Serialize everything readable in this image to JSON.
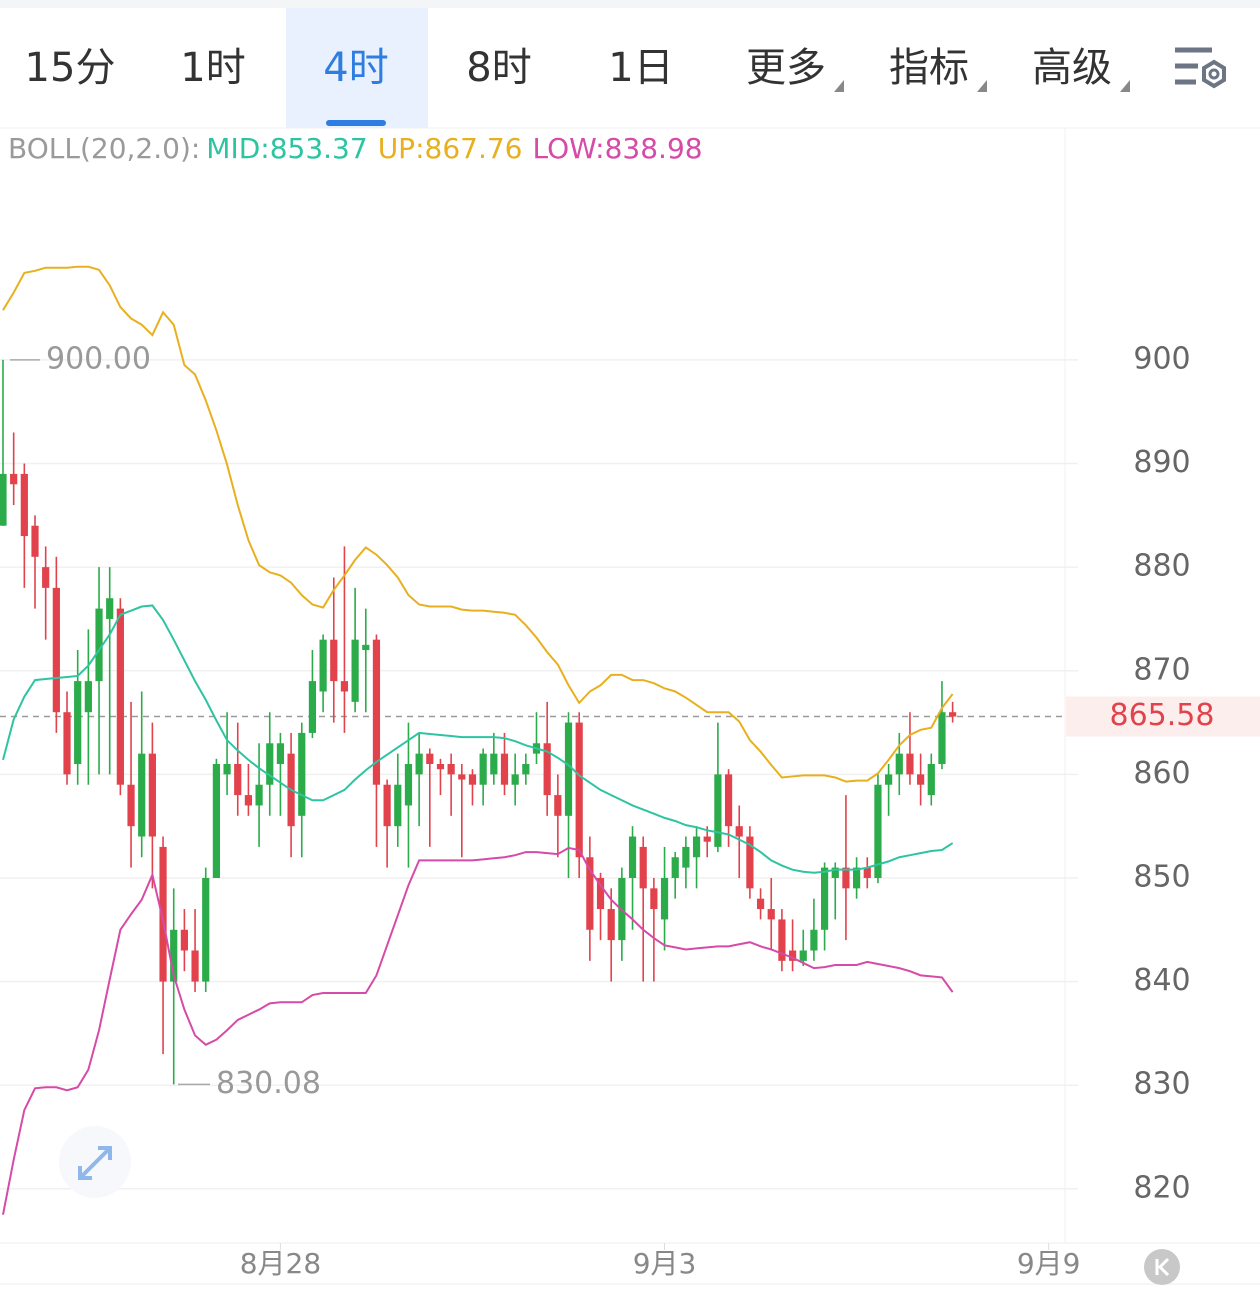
{
  "toolbar": {
    "tabs": [
      "15分",
      "1时",
      "4时",
      "8时",
      "1日",
      "更多",
      "指标",
      "高级"
    ],
    "selected": 2,
    "dropdowns": [
      5,
      6,
      7
    ]
  },
  "chart_data": {
    "type": "candlestick",
    "indicator": "BOLL(20,2.0):",
    "candles": {
      "open": [
        884,
        889,
        889,
        884,
        880,
        878,
        866,
        861,
        866,
        869,
        875,
        876,
        859,
        854,
        862,
        853,
        840,
        845,
        843,
        840,
        850,
        860,
        861,
        858,
        857,
        859,
        861,
        862,
        856,
        864,
        868,
        873,
        869,
        867,
        872,
        873,
        859,
        855,
        857,
        860,
        862,
        861,
        861,
        860,
        860,
        859,
        860,
        862,
        859,
        860,
        862,
        863,
        858,
        856,
        865,
        852,
        850,
        847,
        844,
        850,
        853,
        849,
        846,
        850,
        851,
        852,
        854,
        853,
        860,
        855,
        854,
        848,
        847,
        846,
        843,
        842,
        843,
        845,
        850,
        851,
        849,
        851,
        850,
        859,
        860,
        862,
        860,
        858,
        861,
        866
      ],
      "high": [
        900,
        893,
        890,
        885,
        882,
        881,
        868,
        872,
        874,
        880,
        880,
        877,
        867,
        868,
        865,
        854,
        849,
        847,
        847,
        851,
        861.5,
        866,
        865,
        861,
        863,
        866,
        864,
        864,
        865,
        872,
        873.5,
        879,
        882,
        878,
        876,
        873.5,
        859.5,
        862,
        865,
        864,
        862.5,
        861.5,
        862,
        861,
        860.5,
        862.5,
        864,
        864,
        862,
        862,
        866,
        867,
        860,
        866,
        866,
        854,
        850.5,
        849,
        851,
        855,
        854,
        850,
        853,
        852.5,
        854,
        855,
        855,
        865,
        860.5,
        857,
        855,
        849,
        850,
        847,
        846,
        845,
        848,
        851.5,
        851.5,
        858,
        852,
        852,
        860,
        861,
        864,
        866,
        862,
        862,
        869,
        867
      ],
      "low": [
        884,
        886,
        878,
        876,
        873,
        864,
        859,
        859,
        859,
        860,
        860,
        858,
        851,
        852,
        849,
        833,
        830.08,
        841,
        839,
        839,
        850,
        858,
        856,
        856,
        853,
        856,
        856,
        852,
        852,
        863.5,
        866,
        865,
        864,
        866,
        866,
        853,
        851,
        853,
        851,
        855,
        853,
        858,
        856,
        852,
        857,
        857,
        859,
        858,
        857,
        859,
        861,
        856,
        852,
        850,
        850,
        842,
        844,
        840,
        842,
        845,
        840,
        840,
        843,
        848,
        849,
        849,
        852,
        852.5,
        853,
        850,
        848,
        846,
        843,
        841,
        841,
        841.5,
        842,
        843,
        846,
        844,
        848,
        849,
        849.5,
        856,
        858,
        859,
        857,
        857,
        860.5,
        865
      ],
      "close": [
        889,
        888,
        883,
        881,
        878,
        866,
        860,
        869,
        869,
        876,
        877,
        859,
        855,
        862,
        854,
        840,
        845,
        843,
        840,
        850,
        861,
        861,
        858,
        857,
        859,
        863,
        863,
        855,
        864,
        869,
        873,
        869,
        868,
        873,
        872.5,
        859,
        855,
        859,
        861,
        862,
        861,
        860.5,
        860,
        859.5,
        859,
        862,
        862,
        859,
        860,
        861,
        863,
        858,
        856,
        865,
        852,
        845,
        847,
        844,
        850,
        854,
        849,
        847,
        850,
        852,
        853,
        854,
        853.5,
        860,
        855,
        854,
        849,
        847,
        846,
        842,
        842,
        843,
        845,
        851,
        851,
        849,
        851,
        850,
        859,
        860,
        862,
        860,
        859,
        861,
        866,
        865.58
      ]
    },
    "up_color": "#2bab4a",
    "down_color": "#e2424c",
    "series": [
      {
        "name": "MID:853.37",
        "color": "#2ec4a2",
        "values": [
          861.4,
          865.3,
          867.5,
          869.1,
          869.2,
          869.3,
          869.4,
          869.5,
          870.5,
          872,
          873.5,
          875.4,
          875.8,
          876.2,
          876.3,
          874.9,
          873,
          871,
          869,
          867.2,
          865.2,
          863.3,
          862.3,
          861.4,
          860.6,
          859.9,
          859.2,
          858.5,
          858,
          857.5,
          857.5,
          858,
          858.5,
          859.5,
          860.4,
          861.2,
          861.9,
          862.6,
          863.3,
          864,
          863.9,
          863.8,
          863.7,
          863.6,
          863.6,
          863.6,
          863.6,
          863.5,
          863.2,
          862.8,
          862.5,
          862.2,
          861.6,
          860.9,
          859.9,
          859.2,
          858.5,
          858,
          857.5,
          857,
          856.6,
          856.2,
          855.8,
          855.5,
          855.1,
          854.9,
          854.6,
          854.4,
          854.2,
          853.7,
          853.2,
          852.5,
          851.7,
          851.2,
          850.8,
          850.6,
          850.5,
          850.6,
          850.8,
          850.8,
          850.8,
          851,
          851.3,
          851.6,
          852,
          852.2,
          852.4,
          852.6,
          852.7,
          853.37
        ]
      },
      {
        "name": "UP:867.76",
        "color": "#e8b01e",
        "values": [
          904.8,
          906.5,
          908.4,
          908.6,
          908.9,
          908.9,
          908.9,
          909,
          909,
          908.7,
          907.2,
          905.1,
          904,
          903.4,
          902.4,
          904.6,
          903.4,
          899.5,
          898.6,
          896.1,
          893.2,
          889.9,
          886,
          882.6,
          880.2,
          879.5,
          879.2,
          878.5,
          877.3,
          876.4,
          876.1,
          877.8,
          879.2,
          880.7,
          881.9,
          881.2,
          880.2,
          879,
          877.3,
          876.4,
          876.2,
          876.2,
          876.2,
          875.9,
          875.8,
          875.8,
          875.7,
          875.6,
          875.4,
          874.4,
          873.2,
          871.8,
          870.6,
          868.6,
          866.9,
          868,
          868.6,
          869.6,
          869.6,
          869.1,
          869.1,
          868.8,
          868.3,
          868,
          867.4,
          866.7,
          866,
          866,
          866,
          865.1,
          863.3,
          862.2,
          860.9,
          859.7,
          859.8,
          859.9,
          859.9,
          859.9,
          859.7,
          859.3,
          859.4,
          859.4,
          860.1,
          861.4,
          862.8,
          863.8,
          864.3,
          864.5,
          866.4,
          867.76
        ]
      },
      {
        "name": "LOW:838.98",
        "color": "#d64aa8",
        "values": [
          817.5,
          822.8,
          827.6,
          829.7,
          829.8,
          829.8,
          829.5,
          829.8,
          831.5,
          835.3,
          840.2,
          845,
          846.5,
          847.9,
          850.3,
          845.9,
          840.6,
          837.3,
          834.8,
          833.9,
          834.4,
          835.3,
          836.3,
          836.8,
          837.3,
          837.9,
          838,
          838,
          838,
          838.7,
          838.9,
          838.9,
          838.9,
          838.9,
          838.9,
          840.6,
          843.5,
          846.4,
          849.3,
          851.7,
          851.7,
          851.7,
          851.7,
          851.7,
          851.7,
          851.8,
          851.9,
          852,
          852.2,
          852.5,
          852.5,
          852.4,
          852.3,
          852.9,
          852.7,
          850.8,
          849.3,
          847.9,
          846.9,
          846,
          845,
          844.2,
          843.5,
          843.3,
          843.1,
          843.2,
          843.3,
          843.4,
          843.4,
          843.6,
          843.8,
          843.4,
          843.1,
          842.7,
          842.3,
          841.8,
          841.3,
          841.4,
          841.6,
          841.6,
          841.6,
          841.9,
          841.7,
          841.5,
          841.3,
          841,
          840.6,
          840.5,
          840.4,
          838.98
        ]
      }
    ],
    "ylim": [
      815,
      922
    ],
    "yticks": [
      820,
      830,
      840,
      850,
      860,
      870,
      880,
      890,
      900
    ],
    "grid": true,
    "xticks": [
      {
        "value": 26,
        "label": "8月28"
      },
      {
        "value": 62,
        "label": "9月3"
      },
      {
        "value": 98,
        "label": "9月9"
      }
    ],
    "last_price": 865.58,
    "annotations": [
      {
        "value": 900,
        "label": "900.00"
      },
      {
        "value": 830.08,
        "label": "830.08"
      }
    ]
  }
}
